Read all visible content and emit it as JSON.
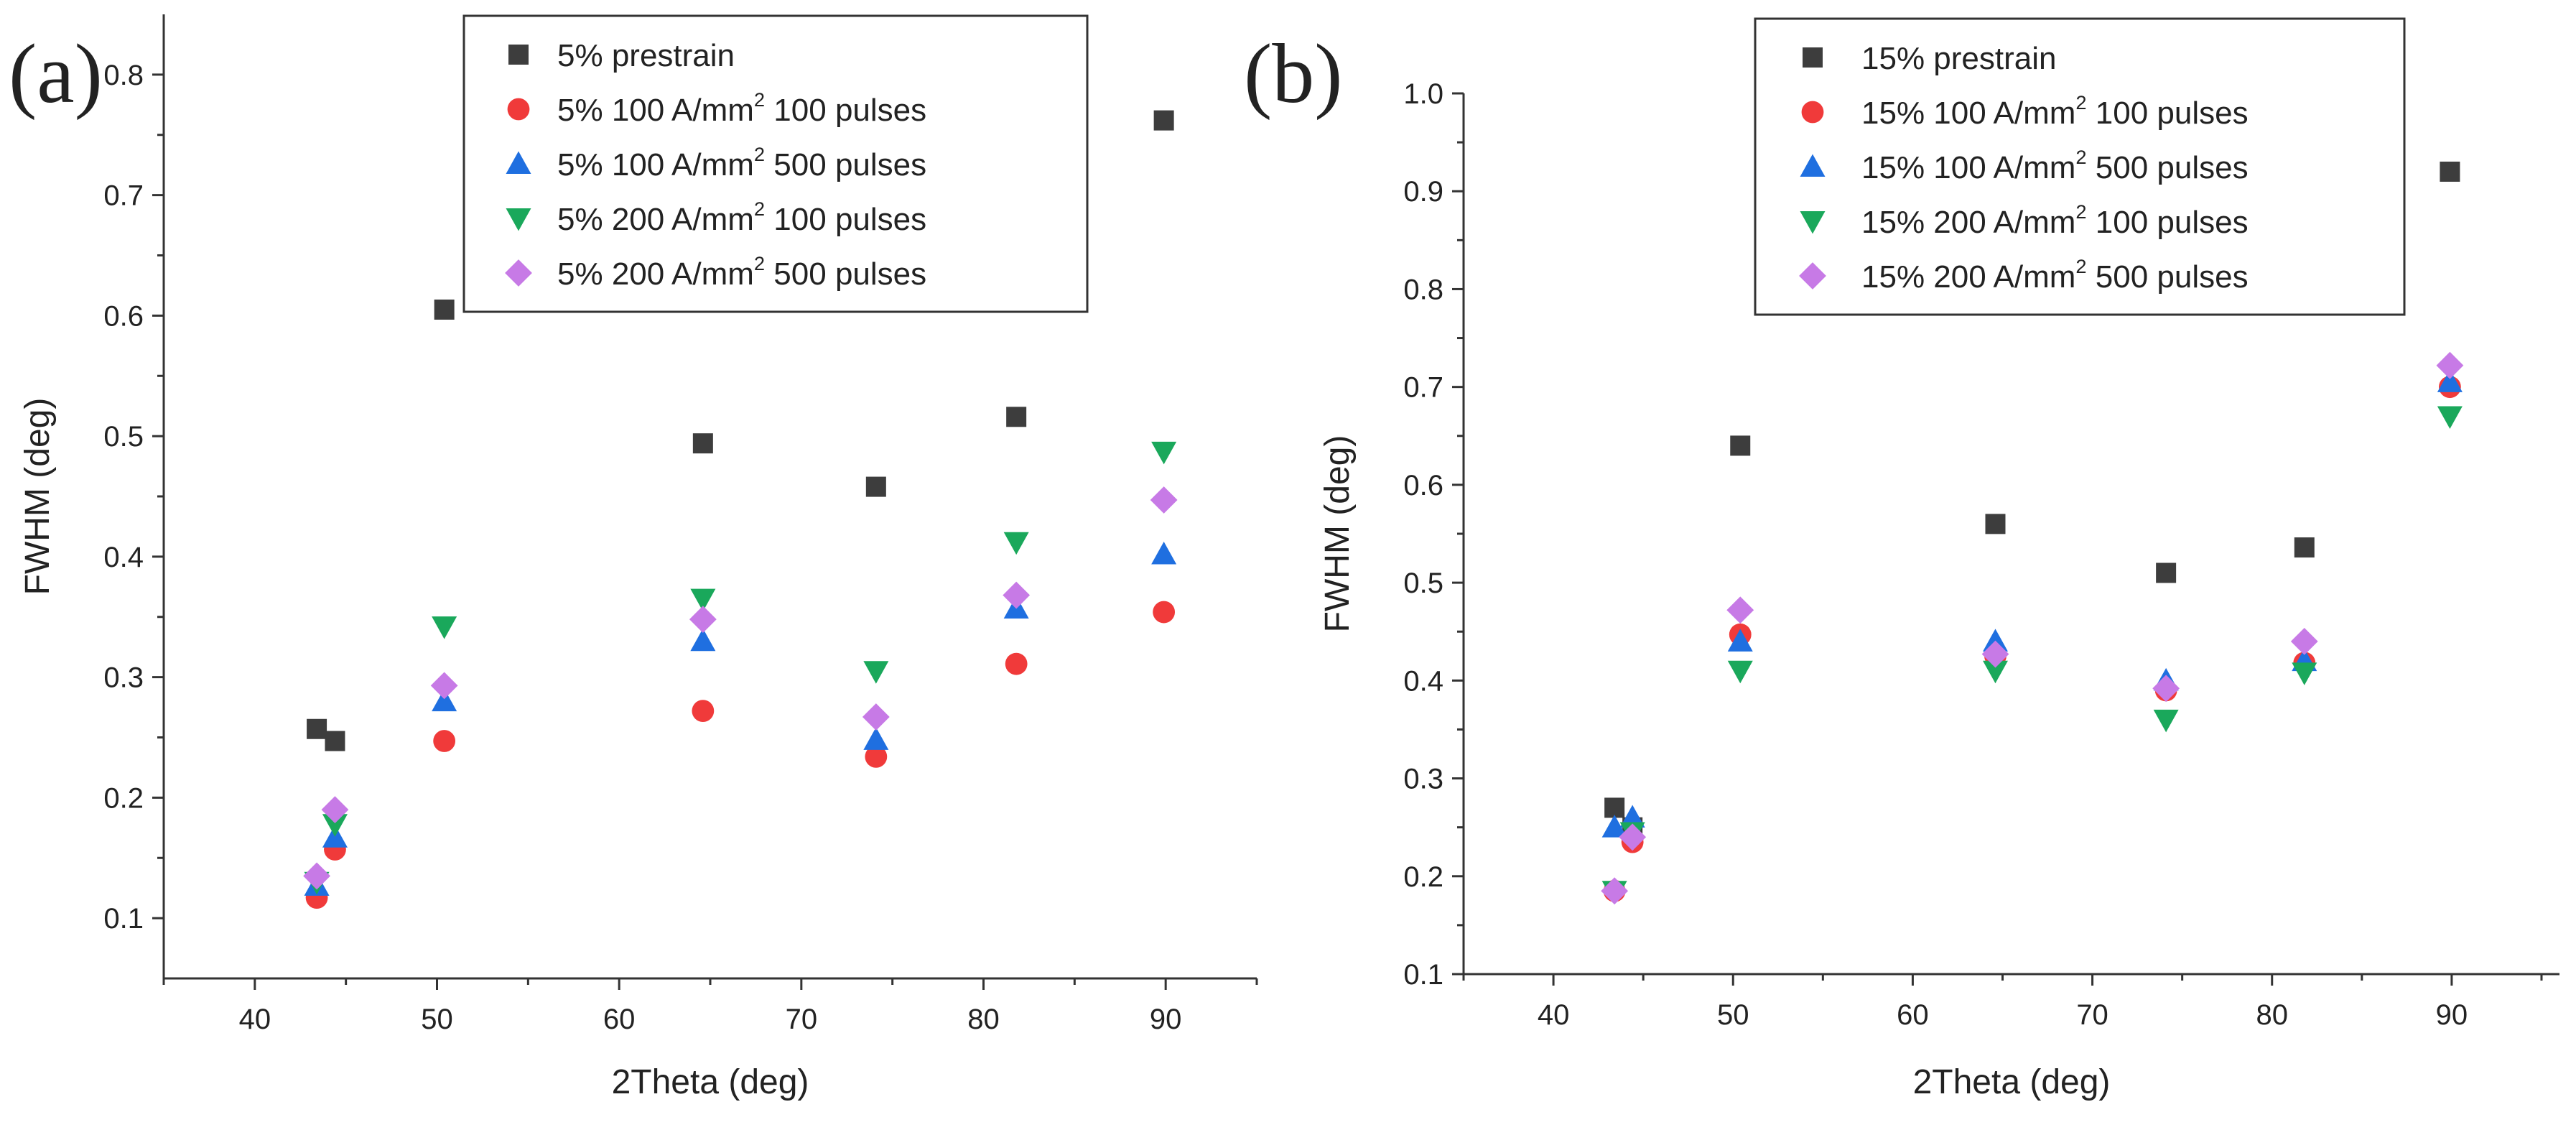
{
  "chart_data": [
    {
      "type": "scatter",
      "panel_label": "(a)",
      "title": "",
      "xlabel": "2Theta (deg)",
      "ylabel": "FWHM (deg)",
      "xlim": [
        35,
        95
      ],
      "ylim": [
        0.05,
        0.85
      ],
      "xticks": [
        40,
        50,
        60,
        70,
        80,
        90
      ],
      "yticks": [
        0.1,
        0.2,
        0.3,
        0.4,
        0.5,
        0.6,
        0.7,
        0.8
      ],
      "x": [
        43.4,
        44.4,
        50.4,
        64.6,
        74.1,
        81.8,
        89.9
      ],
      "legend_position": "top-right",
      "series": [
        {
          "name": "5% prestrain",
          "legend_parts": [
            "5% prestrain"
          ],
          "marker": "square",
          "color": "#3d3d3d",
          "values": [
            0.257,
            0.247,
            0.605,
            0.494,
            0.458,
            0.516,
            0.762
          ]
        },
        {
          "name": "5% 100 A/mm2 100 pulses",
          "legend_parts": [
            "5% 100 A/mm",
            "2",
            " 100 pulses"
          ],
          "marker": "circle",
          "color": "#f03a3a",
          "values": [
            0.117,
            0.157,
            0.247,
            0.272,
            0.234,
            0.311,
            0.354
          ]
        },
        {
          "name": "5% 100 A/mm2 500 pulses",
          "legend_parts": [
            "5% 100 A/mm",
            "2",
            " 500 pulses"
          ],
          "marker": "triangle-up",
          "color": "#1f6fe0",
          "values": [
            0.127,
            0.167,
            0.28,
            0.33,
            0.248,
            0.357,
            0.402
          ]
        },
        {
          "name": "5% 200 A/mm2 100 pulses",
          "legend_parts": [
            "5% 200 A/mm",
            "2",
            " 100 pulses"
          ],
          "marker": "triangle-down",
          "color": "#1aa85b",
          "values": [
            0.13,
            0.178,
            0.342,
            0.365,
            0.305,
            0.412,
            0.487
          ]
        },
        {
          "name": "5% 200 A/mm2 500 pulses",
          "legend_parts": [
            "5% 200 A/mm",
            "2",
            " 500 pulses"
          ],
          "marker": "diamond",
          "color": "#c77ae6",
          "values": [
            0.135,
            0.19,
            0.293,
            0.348,
            0.267,
            0.368,
            0.447
          ]
        }
      ]
    },
    {
      "type": "scatter",
      "panel_label": "(b)",
      "title": "",
      "xlabel": "2Theta (deg)",
      "ylabel": "FWHM (deg)",
      "xlim": [
        35,
        96
      ],
      "ylim": [
        0.1,
        1.0
      ],
      "xticks": [
        40,
        50,
        60,
        70,
        80,
        90
      ],
      "yticks": [
        0.1,
        0.2,
        0.3,
        0.4,
        0.5,
        0.6,
        0.7,
        0.8,
        0.9,
        1.0
      ],
      "x": [
        43.4,
        44.4,
        50.4,
        64.6,
        74.1,
        81.8,
        89.9
      ],
      "legend_position": "top-left",
      "series": [
        {
          "name": "15% prestrain",
          "legend_parts": [
            "15% prestrain"
          ],
          "marker": "square",
          "color": "#3d3d3d",
          "values": [
            0.27,
            0.25,
            0.64,
            0.56,
            0.51,
            0.536,
            0.92
          ]
        },
        {
          "name": "15% 100 A/mm2 100 pulses",
          "legend_parts": [
            "15% 100 A/mm",
            "2",
            " 100 pulses"
          ],
          "marker": "circle",
          "color": "#f03a3a",
          "values": [
            0.185,
            0.235,
            0.447,
            0.425,
            0.39,
            0.418,
            0.7
          ]
        },
        {
          "name": "15% 100 A/mm2 500 pulses",
          "legend_parts": [
            "15% 100 A/mm",
            "2",
            " 500 pulses"
          ],
          "marker": "triangle-up",
          "color": "#1f6fe0",
          "values": [
            0.25,
            0.26,
            0.44,
            0.44,
            0.4,
            0.42,
            0.705
          ]
        },
        {
          "name": "15% 200 A/mm2 100 pulses",
          "legend_parts": [
            "15% 200 A/mm",
            "2",
            " 100 pulses"
          ],
          "marker": "triangle-down",
          "color": "#1aa85b",
          "values": [
            0.185,
            0.245,
            0.41,
            0.41,
            0.36,
            0.408,
            0.67
          ]
        },
        {
          "name": "15% 200 A/mm2 500 pulses",
          "legend_parts": [
            "15% 200 A/mm",
            "2",
            " 500 pulses"
          ],
          "marker": "diamond",
          "color": "#c77ae6",
          "values": [
            0.185,
            0.24,
            0.472,
            0.427,
            0.392,
            0.44,
            0.722
          ]
        }
      ]
    }
  ]
}
